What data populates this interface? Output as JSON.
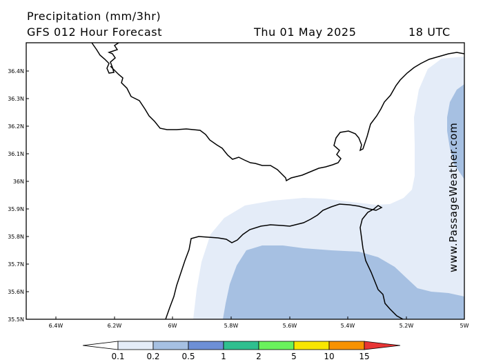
{
  "header": {
    "title": "Precipitation (mm/3hr)",
    "model": "GFS 012 Hour Forecast",
    "date": "Thu 01 May 2025",
    "time": "18 UTC"
  },
  "credit": "www.PassageWeather.com",
  "map": {
    "lat_ticks": [
      "36.4N",
      "36.3N",
      "36.2N",
      "36.1N",
      "36N",
      "35.9N",
      "35.8N",
      "35.7N",
      "35.6N",
      "35.5N"
    ],
    "lon_ticks": [
      "6.4W",
      "6.2W",
      "6W",
      "5.8W",
      "5.6W",
      "5.4W",
      "5.2W",
      "5W"
    ],
    "precip_colors": {
      "level_0_1": "#e4ecf8",
      "level_0_2": "#a6c0e2"
    }
  },
  "legend": {
    "labels": [
      "0.1",
      "0.2",
      "0.5",
      "1",
      "2",
      "5",
      "10",
      "15"
    ],
    "colors": [
      "#ffffff",
      "#e4ecf8",
      "#a6c0e2",
      "#6d8fd6",
      "#2fbf8f",
      "#6af25c",
      "#f8e600",
      "#f79200",
      "#e83535"
    ]
  }
}
